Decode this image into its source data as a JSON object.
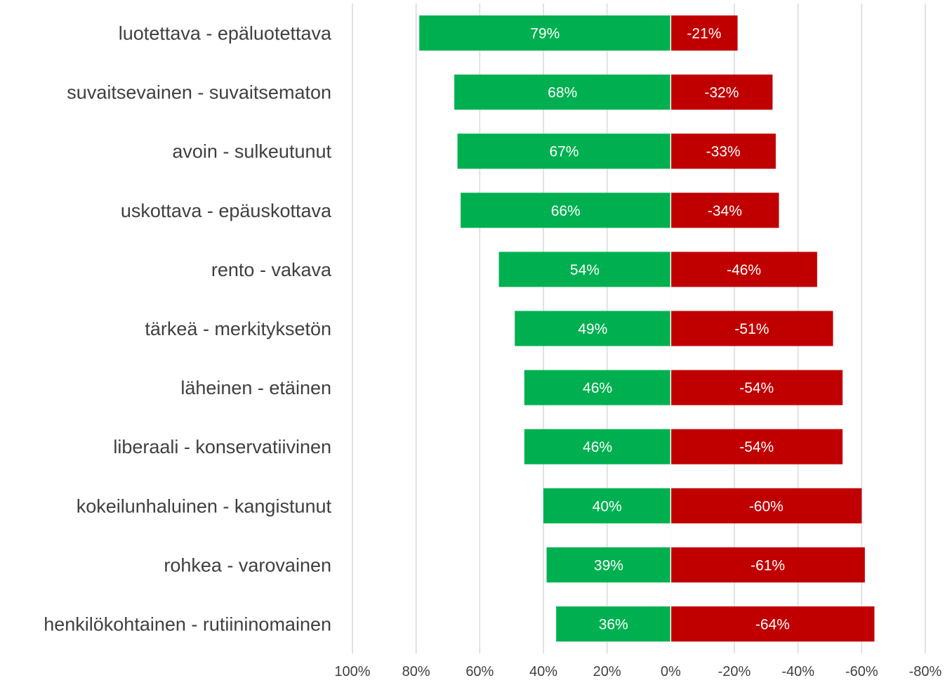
{
  "chart_data": {
    "type": "bar",
    "orientation": "horizontal-diverging",
    "title": "",
    "xlabel": "",
    "ylabel": "",
    "xlim": [
      100,
      -80
    ],
    "grid": true,
    "legend": "none",
    "x_ticks": [
      100,
      80,
      60,
      40,
      20,
      0,
      -20,
      -40,
      -60,
      -80
    ],
    "x_tick_labels": [
      "100%",
      "80%",
      "60%",
      "40%",
      "20%",
      "0%",
      "-20%",
      "-40%",
      "-60%",
      "-80%"
    ],
    "categories": [
      "luotettava - epäluotettava",
      "suvaitsevainen - suvaitsematon",
      "avoin - sulkeutunut",
      "uskottava - epäuskottava",
      "rento - vakava",
      "tärkeä - merkityksetön",
      "läheinen - etäinen",
      "liberaali - konservatiivinen",
      "kokeilunhaluinen - kangistunut",
      "rohkea - varovainen",
      "henkilökohtainen - rutiininomainen"
    ],
    "series": [
      {
        "color": "#00b050",
        "values": [
          79,
          68,
          67,
          66,
          54,
          49,
          46,
          46,
          40,
          39,
          36
        ],
        "labels": [
          "79%",
          "68%",
          "67%",
          "66%",
          "54%",
          "49%",
          "46%",
          "46%",
          "40%",
          "39%",
          "36%"
        ]
      },
      {
        "color": "#c00000",
        "values": [
          -21,
          -32,
          -33,
          -34,
          -46,
          -51,
          -54,
          -54,
          -60,
          -61,
          -64
        ],
        "labels": [
          "-21%",
          "-32%",
          "-33%",
          "-34%",
          "-46%",
          "-51%",
          "-54%",
          "-54%",
          "-60%",
          "-61%",
          "-64%"
        ]
      }
    ]
  }
}
